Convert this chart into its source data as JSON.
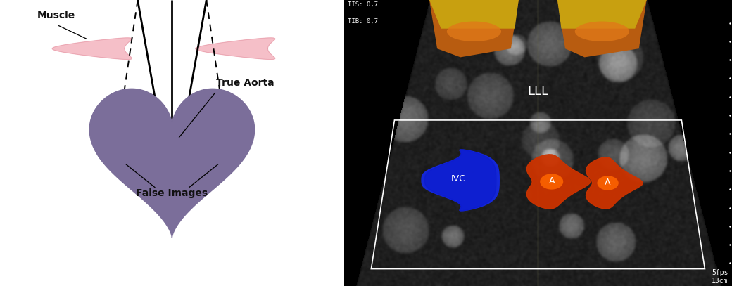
{
  "bg_color": "#ffffff",
  "muscle_color": "#f5bfc8",
  "muscle_stroke": "#e8a0ad",
  "heart_color": "#7b6e9a",
  "false_circle_color": "#ccc8d8",
  "false_circle_edge": "#aaa5b8",
  "label_muscle": "Muscle",
  "label_true_aorta": "True Aorta",
  "label_false_images": "False Images",
  "label_LLL": "LLL",
  "label_IVC": "IVC",
  "label_A": "A",
  "text_color_diagram": "#111111",
  "text_color_us": "#ffffff",
  "us_dark": "#0d0d0d",
  "us_mid": "#2a2a2a",
  "skin_orange": "#c86010",
  "skin_yellow": "#d4a020",
  "ivc_blue": "#1428e0",
  "aorta_red": "#cc3300",
  "aorta_orange": "#ff6600"
}
